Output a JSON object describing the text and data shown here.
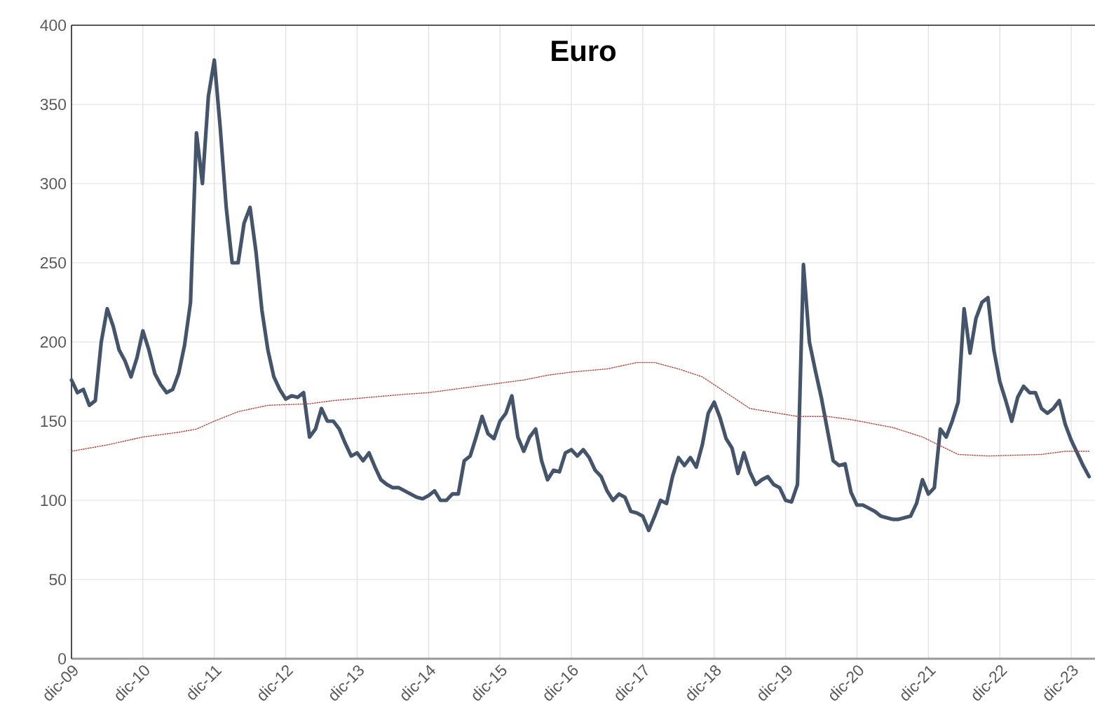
{
  "chart_data": {
    "type": "line",
    "title": "Euro",
    "xlim": [
      "2009-12",
      "2024-04"
    ],
    "ylim": [
      0,
      400
    ],
    "xticks": [
      {
        "value": "2009-12",
        "label": "dic-09"
      },
      {
        "value": "2010-12",
        "label": "dic-10"
      },
      {
        "value": "2011-12",
        "label": "dic-11"
      },
      {
        "value": "2012-12",
        "label": "dic-12"
      },
      {
        "value": "2013-12",
        "label": "dic-13"
      },
      {
        "value": "2014-12",
        "label": "dic-14"
      },
      {
        "value": "2015-12",
        "label": "dic-15"
      },
      {
        "value": "2016-12",
        "label": "dic-16"
      },
      {
        "value": "2017-12",
        "label": "dic-17"
      },
      {
        "value": "2018-12",
        "label": "dic-18"
      },
      {
        "value": "2019-12",
        "label": "dic-19"
      },
      {
        "value": "2020-12",
        "label": "dic-20"
      },
      {
        "value": "2021-12",
        "label": "dic-21"
      },
      {
        "value": "2022-12",
        "label": "dic-22"
      },
      {
        "value": "2023-12",
        "label": "dic-23"
      }
    ],
    "yticks": [
      0,
      50,
      100,
      150,
      200,
      250,
      300,
      350,
      400
    ],
    "grid": true,
    "series": [
      {
        "color": "#44546a",
        "line_style": "solid",
        "x": [
          "2009-12",
          "2010-01",
          "2010-02",
          "2010-03",
          "2010-04",
          "2010-05",
          "2010-06",
          "2010-07",
          "2010-08",
          "2010-09",
          "2010-10",
          "2010-11",
          "2010-12",
          "2011-01",
          "2011-02",
          "2011-03",
          "2011-04",
          "2011-05",
          "2011-06",
          "2011-07",
          "2011-08",
          "2011-09",
          "2011-10",
          "2011-11",
          "2011-12",
          "2012-01",
          "2012-02",
          "2012-03",
          "2012-04",
          "2012-05",
          "2012-06",
          "2012-07",
          "2012-08",
          "2012-09",
          "2012-10",
          "2012-11",
          "2012-12",
          "2013-01",
          "2013-02",
          "2013-03",
          "2013-04",
          "2013-05",
          "2013-06",
          "2013-07",
          "2013-08",
          "2013-09",
          "2013-10",
          "2013-11",
          "2013-12",
          "2014-01",
          "2014-02",
          "2014-03",
          "2014-04",
          "2014-05",
          "2014-06",
          "2014-07",
          "2014-08",
          "2014-09",
          "2014-10",
          "2014-11",
          "2014-12",
          "2015-01",
          "2015-02",
          "2015-03",
          "2015-04",
          "2015-05",
          "2015-06",
          "2015-07",
          "2015-08",
          "2015-09",
          "2015-10",
          "2015-11",
          "2015-12",
          "2016-01",
          "2016-02",
          "2016-03",
          "2016-04",
          "2016-05",
          "2016-06",
          "2016-07",
          "2016-08",
          "2016-09",
          "2016-10",
          "2016-11",
          "2016-12",
          "2017-01",
          "2017-02",
          "2017-03",
          "2017-04",
          "2017-05",
          "2017-06",
          "2017-07",
          "2017-08",
          "2017-09",
          "2017-10",
          "2017-11",
          "2017-12",
          "2018-01",
          "2018-02",
          "2018-03",
          "2018-04",
          "2018-05",
          "2018-06",
          "2018-07",
          "2018-08",
          "2018-09",
          "2018-10",
          "2018-11",
          "2018-12",
          "2019-01",
          "2019-02",
          "2019-03",
          "2019-04",
          "2019-05",
          "2019-06",
          "2019-07",
          "2019-08",
          "2019-09",
          "2019-10",
          "2019-11",
          "2019-12",
          "2020-01",
          "2020-02",
          "2020-03",
          "2020-04",
          "2020-05",
          "2020-06",
          "2020-07",
          "2020-08",
          "2020-09",
          "2020-10",
          "2020-11",
          "2020-12",
          "2021-01",
          "2021-02",
          "2021-03",
          "2021-04",
          "2021-05",
          "2021-06",
          "2021-07",
          "2021-08",
          "2021-09",
          "2021-10",
          "2021-11",
          "2021-12",
          "2022-01",
          "2022-02",
          "2022-03",
          "2022-04",
          "2022-05",
          "2022-06",
          "2022-07",
          "2022-08",
          "2022-09",
          "2022-10",
          "2022-11",
          "2022-12",
          "2023-01",
          "2023-02",
          "2023-03",
          "2023-04",
          "2023-05",
          "2023-06",
          "2023-07",
          "2023-08",
          "2023-09",
          "2023-10",
          "2023-11",
          "2023-12",
          "2024-01",
          "2024-02",
          "2024-03"
        ],
        "values": [
          176,
          168,
          170,
          160,
          163,
          200,
          221,
          210,
          195,
          188,
          178,
          190,
          207,
          195,
          180,
          173,
          168,
          170,
          180,
          198,
          225,
          332,
          300,
          355,
          378,
          335,
          285,
          250,
          250,
          275,
          285,
          257,
          220,
          195,
          178,
          170,
          164,
          166,
          165,
          168,
          140,
          145,
          158,
          150,
          150,
          145,
          136,
          128,
          130,
          125,
          130,
          121,
          113,
          110,
          108,
          108,
          106,
          104,
          102,
          101,
          103,
          106,
          100,
          100,
          104,
          104,
          125,
          128,
          140,
          153,
          142,
          139,
          150,
          155,
          166,
          140,
          131,
          140,
          145,
          125,
          113,
          119,
          118,
          130,
          132,
          128,
          132,
          127,
          119,
          115,
          106,
          100,
          104,
          102,
          93,
          92,
          90,
          81,
          90,
          100,
          98,
          115,
          127,
          122,
          127,
          121,
          135,
          155,
          162,
          152,
          139,
          133,
          117,
          130,
          118,
          110,
          113,
          115,
          110,
          108,
          100,
          99,
          110,
          249,
          200,
          182,
          165,
          145,
          125,
          122,
          123,
          105,
          97,
          97,
          95,
          93,
          90,
          89,
          88,
          88,
          89,
          90,
          98,
          113,
          104,
          108,
          145,
          140,
          150,
          162,
          221,
          193,
          215,
          225,
          228,
          195,
          175,
          163,
          150,
          165,
          172,
          168,
          168,
          158,
          155,
          158,
          163,
          148,
          138,
          130,
          122,
          115
        ]
      },
      {
        "color": "#b5453a",
        "line_style": "dotted",
        "x": [
          "2009-12",
          "2010-06",
          "2010-12",
          "2011-06",
          "2011-09",
          "2011-12",
          "2012-04",
          "2012-09",
          "2013-04",
          "2013-08",
          "2014-02",
          "2014-08",
          "2014-12",
          "2015-06",
          "2015-10",
          "2016-04",
          "2016-08",
          "2016-12",
          "2017-06",
          "2017-11",
          "2018-02",
          "2018-06",
          "2018-10",
          "2019-02",
          "2019-06",
          "2020-02",
          "2020-07",
          "2020-11",
          "2021-06",
          "2021-11",
          "2022-05",
          "2022-10",
          "2023-07",
          "2023-11",
          "2024-03"
        ],
        "values": [
          131,
          135,
          140,
          143,
          145,
          150,
          156,
          160,
          161,
          163,
          165,
          167,
          168,
          171,
          173,
          176,
          179,
          181,
          183,
          187,
          187,
          183,
          178,
          168,
          158,
          153,
          153,
          151,
          146,
          140,
          129,
          128,
          129,
          131,
          131
        ]
      }
    ]
  }
}
